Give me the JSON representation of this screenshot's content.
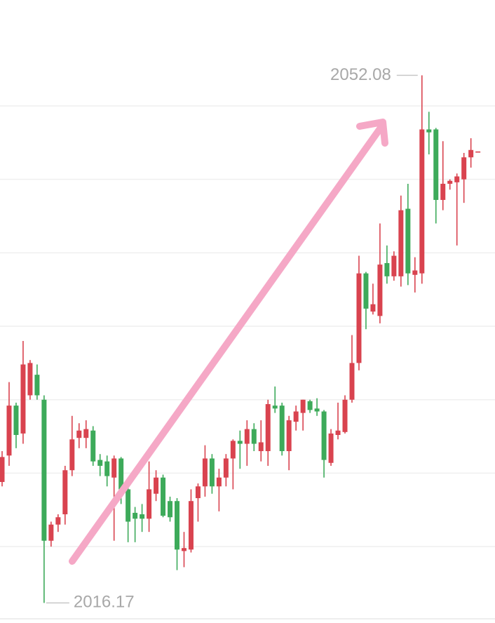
{
  "chart_data": {
    "type": "candlestick",
    "open": [
      2024.4,
      2026.2,
      2029.6,
      2027.7,
      2030.3,
      2031.7,
      2030.0,
      2020.4,
      2021.5,
      2022.2,
      2025.2,
      2027.4,
      2027.4,
      2027.9,
      2025.9,
      2025.8,
      2024.7,
      2026.0,
      2023.9,
      2022.3,
      2022.2,
      2021.9,
      2023.6,
      2024.7,
      2023.1,
      2023.1,
      2019.7,
      2019.8,
      2023.3,
      2024.1,
      2026.0,
      2024.1,
      2024.7,
      2026.0,
      2027.2,
      2027.0,
      2028.0,
      2026.5,
      2026.5,
      2029.6,
      2029.6,
      2026.5,
      2028.5,
      2029.1,
      2029.9,
      2029.4,
      2029.2,
      2025.7,
      2027.6,
      2027.8,
      2030.0,
      2032.5,
      2038.6,
      2036.0,
      2035.7,
      2039.3,
      2038.4,
      2038.4,
      2043.0,
      2038.5,
      2038.6,
      2048.4,
      2048.4,
      2043.6,
      2044.7,
      2044.8,
      2045.0,
      2046.5,
      2046.9
    ],
    "high": [
      2026.5,
      2031.2,
      2029.8,
      2034.0,
      2032.7,
      2032.4,
      2030.3,
      2021.7,
      2022.2,
      2025.5,
      2028.9,
      2028.4,
      2028.6,
      2028.2,
      2026.3,
      2026.2,
      2026.2,
      2026.1,
      2024.3,
      2022.7,
      2022.9,
      2025.8,
      2025.2,
      2024.9,
      2023.4,
      2023.3,
      2021.0,
      2023.9,
      2024.3,
      2026.9,
      2026.3,
      2025.3,
      2026.3,
      2027.3,
      2027.9,
      2028.6,
      2028.4,
      2028.6,
      2030.0,
      2030.9,
      2029.8,
      2028.9,
      2029.6,
      2030.0,
      2030.0,
      2030.1,
      2029.3,
      2028.0,
      2029.8,
      2030.3,
      2034.4,
      2039.8,
      2038.7,
      2037.9,
      2042.0,
      2040.5,
      2040.1,
      2043.9,
      2044.7,
      2039.7,
      2052.08,
      2049.6,
      2048.5,
      2047.6,
      2045.0,
      2045.4,
      2046.8,
      2047.8,
      2046.9
    ],
    "low": [
      2024.1,
      2025.5,
      2026.7,
      2027.0,
      2030.0,
      2030.0,
      2016.17,
      2020.0,
      2021.0,
      2021.5,
      2024.8,
      2026.7,
      2026.7,
      2025.5,
      2024.8,
      2024.1,
      2020.4,
      2022.9,
      2020.3,
      2020.3,
      2021.0,
      2021.0,
      2023.1,
      2022.0,
      2021.7,
      2018.4,
      2018.6,
      2019.6,
      2021.7,
      2023.4,
      2023.6,
      2022.4,
      2024.1,
      2023.9,
      2025.3,
      2025.5,
      2026.5,
      2025.8,
      2025.5,
      2029.1,
      2026.2,
      2025.2,
      2027.9,
      2027.9,
      2029.1,
      2028.9,
      2024.7,
      2025.5,
      2027.3,
      2027.7,
      2029.8,
      2032.0,
      2034.8,
      2035.8,
      2035.2,
      2037.9,
      2038.1,
      2037.7,
      2037.8,
      2037.3,
      2037.9,
      2046.7,
      2042.0,
      2042.9,
      2044.3,
      2040.5,
      2043.4,
      2045.8,
      2046.9
    ],
    "close": [
      2026.1,
      2029.6,
      2027.6,
      2032.4,
      2032.5,
      2030.3,
      2020.4,
      2021.5,
      2022.0,
      2025.2,
      2027.3,
      2027.9,
      2028.0,
      2025.8,
      2025.5,
      2024.8,
      2026.0,
      2023.9,
      2021.7,
      2021.9,
      2021.9,
      2023.9,
      2024.7,
      2022.1,
      2022.0,
      2019.8,
      2019.9,
      2023.1,
      2024.1,
      2026.0,
      2024.1,
      2024.7,
      2026.0,
      2027.2,
      2027.0,
      2028.0,
      2027.0,
      2027.1,
      2029.7,
      2029.4,
      2026.5,
      2028.6,
      2029.2,
      2030.0,
      2029.3,
      2029.2,
      2025.9,
      2027.7,
      2027.9,
      2030.0,
      2032.5,
      2038.6,
      2036.2,
      2036.5,
      2039.2,
      2038.4,
      2039.8,
      2042.9,
      2038.6,
      2038.8,
      2048.4,
      2048.2,
      2043.6,
      2044.7,
      2044.9,
      2045.2,
      2046.5,
      2047.0,
      2046.9
    ],
    "up_color": "#d9434f",
    "down_color": "#3daa5a",
    "ylim": [
      2014.8,
      2057.21
    ],
    "yticks": [
      2020,
      2025,
      2030,
      2035,
      2040,
      2045,
      2050
    ],
    "grid": true,
    "max_label": "2052.08",
    "min_label": "2016.17"
  }
}
